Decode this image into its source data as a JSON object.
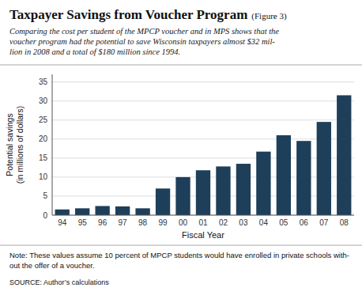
{
  "chart_data": {
    "type": "bar",
    "title": "Taxpayer Savings from Voucher Program",
    "subtitle": "Comparing the cost per student of the MPCP voucher and in MPS shows that the\nvoucher program had the potential to save Wisconsin taxpayers almost $32 mil-\nlion in 2008 and a total of $180 million since 1994.",
    "annotations": [
      "(Figure 3)",
      "Note: These values assume 10 percent of MPCP students would have enrolled in private schools with-",
      "out the offer of a voucher.",
      "SOURCE:  Author’s calculations"
    ],
    "x_label": "Fiscal Year",
    "y_label": "Potential savings\n(in millions of dollars)",
    "categories": [
      "94",
      "95",
      "96",
      "97",
      "98",
      "99",
      "00",
      "01",
      "02",
      "03",
      "04",
      "05",
      "06",
      "07",
      "08"
    ],
    "values": [
      1.5,
      1.8,
      2.4,
      2.3,
      1.8,
      7.0,
      10.0,
      11.8,
      12.8,
      13.5,
      16.7,
      21.0,
      19.5,
      24.5,
      31.5
    ],
    "color": "#1e3f5a",
    "ylim": [
      0,
      37
    ],
    "yticks": [
      0,
      5,
      10,
      15,
      20,
      25,
      30,
      35
    ],
    "grid": true
  }
}
